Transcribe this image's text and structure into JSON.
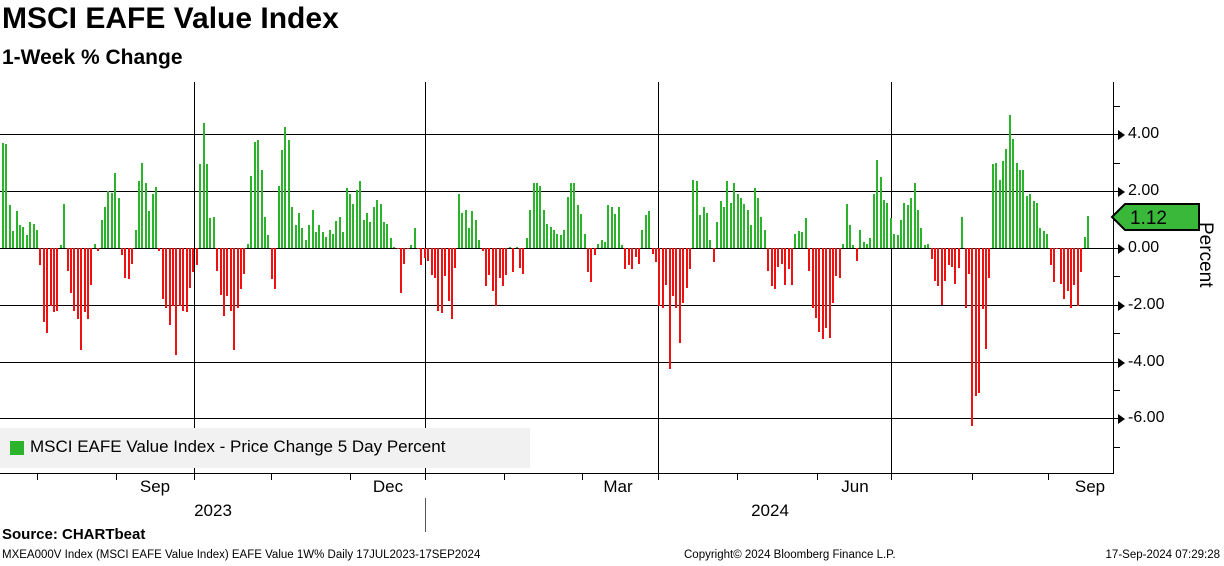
{
  "header": {
    "title": "MSCI EAFE Value Index",
    "subtitle": "1-Week % Change"
  },
  "chart_data": {
    "type": "bar",
    "title": "MSCI EAFE Value Index 1-Week % Change",
    "series_name": "MSCI EAFE Value Index - Price Change 5 Day Percent",
    "frequency": "Daily",
    "date_range": "17JUL2023-17SEP2024",
    "ylabel": "Percent",
    "ylim": [
      -7.9,
      5.85
    ],
    "y_tick_values": [
      4,
      2,
      0,
      -2,
      -4,
      -6
    ],
    "y_tick_labels": [
      "4.00",
      "2.00",
      "0.00",
      "-2.00",
      "-4.00",
      "-6.00"
    ],
    "y_minor_tick_values": [
      5,
      3,
      1,
      -1,
      -3,
      -5,
      -7
    ],
    "x_tick_labels": [
      "Sep",
      "Dec",
      "Mar",
      "Jun",
      "Sep"
    ],
    "year_labels": [
      "2023",
      "2024"
    ],
    "grid": true,
    "legend_position": "bottom-left",
    "last_value": 1.12,
    "last_value_label": "1.12",
    "colors": {
      "positive": "#2cb32c",
      "negative": "#ee1111",
      "tag_fill": "#3ab83a"
    },
    "values": [
      3.7,
      3.65,
      1.5,
      0.6,
      1.3,
      0.8,
      0.75,
      0.45,
      0.9,
      0.85,
      0.65,
      -0.6,
      -2.6,
      -3.0,
      -2.05,
      -2.25,
      -2.2,
      0.1,
      1.55,
      -0.8,
      -1.6,
      -2.2,
      -2.5,
      -3.6,
      -2.25,
      -2.5,
      -1.3,
      0.15,
      -0.1,
      1.0,
      1.45,
      2.0,
      1.95,
      2.65,
      1.75,
      -0.25,
      -1.05,
      -1.1,
      -0.55,
      0.65,
      2.35,
      3.0,
      2.3,
      1.3,
      1.9,
      2.15,
      -0.1,
      -1.8,
      -2.1,
      -2.7,
      -2.05,
      -3.75,
      -2.05,
      -2.2,
      -2.25,
      -1.4,
      -0.85,
      -0.6,
      2.95,
      4.4,
      2.95,
      1.05,
      1.1,
      -0.8,
      -1.65,
      -2.4,
      -1.7,
      -2.2,
      -3.6,
      -2.1,
      -1.45,
      -0.9,
      0.15,
      2.55,
      3.75,
      3.8,
      2.75,
      1.1,
      0.45,
      -1.1,
      -1.45,
      2.2,
      3.45,
      4.25,
      3.8,
      1.45,
      0.8,
      1.25,
      0.7,
      0.3,
      0.8,
      1.35,
      0.55,
      0.8,
      0.55,
      0.4,
      0.65,
      0.5,
      0.95,
      1.1,
      0.55,
      2.1,
      1.9,
      1.55,
      2.05,
      2.35,
      1.0,
      1.25,
      0.9,
      1.45,
      1.7,
      1.55,
      0.9,
      0.85,
      0.35,
      0.05,
      -0.05,
      -1.6,
      -0.55,
      -0.05,
      0.1,
      0.7,
      -0.05,
      -0.6,
      -0.35,
      -0.45,
      -0.95,
      -1.05,
      -2.2,
      -2.3,
      -1.0,
      -1.85,
      -2.5,
      -0.7,
      1.9,
      1.25,
      1.35,
      0.7,
      1.3,
      1.0,
      0.3,
      -0.1,
      -1.35,
      -0.95,
      -1.5,
      -2.05,
      -1.05,
      -1.35,
      -0.95,
      0.05,
      -0.85,
      0.05,
      -0.7,
      -0.9,
      0.35,
      1.35,
      2.3,
      2.3,
      2.2,
      1.35,
      0.85,
      0.75,
      0.65,
      0.5,
      0.45,
      0.65,
      1.8,
      2.3,
      2.3,
      1.5,
      1.2,
      0.5,
      -0.85,
      -1.2,
      -0.25,
      0.15,
      0.3,
      0.2,
      1.5,
      1.45,
      1.2,
      1.45,
      0.1,
      -0.75,
      -0.6,
      -0.75,
      -0.3,
      -0.55,
      0.65,
      1.15,
      1.3,
      -0.2,
      -0.5,
      -2.05,
      -2.1,
      -1.3,
      -4.25,
      -1.7,
      -2.1,
      -3.35,
      -1.95,
      -1.4,
      -0.75,
      2.4,
      2.35,
      1.15,
      1.45,
      1.25,
      0.3,
      -0.5,
      0.9,
      1.65,
      1.45,
      2.35,
      1.6,
      2.3,
      1.9,
      1.75,
      1.55,
      1.35,
      0.8,
      2.1,
      1.75,
      1.1,
      0.65,
      -0.8,
      -1.35,
      -1.45,
      -0.65,
      -0.55,
      -1.3,
      -0.75,
      -1.3,
      0.5,
      0.6,
      0.55,
      1.05,
      -0.8,
      -2.1,
      -2.45,
      -2.95,
      -3.2,
      -2.8,
      -3.15,
      -1.95,
      -1.0,
      -1.05,
      0.15,
      1.55,
      0.8,
      0.1,
      -0.45,
      0.65,
      0.2,
      0.15,
      0.35,
      1.9,
      3.1,
      2.5,
      1.7,
      1.6,
      1.05,
      0.5,
      0.45,
      1.0,
      1.6,
      1.5,
      1.75,
      2.3,
      1.35,
      0.7,
      0.1,
      0.15,
      -0.4,
      -1.15,
      -1.35,
      -2.0,
      -1.15,
      -0.6,
      -0.65,
      -1.25,
      -0.7,
      1.1,
      -2.1,
      -0.9,
      -6.25,
      -5.2,
      -5.1,
      -2.15,
      -3.55,
      -1.05,
      2.95,
      3.0,
      2.4,
      3.05,
      3.5,
      4.7,
      3.85,
      3.0,
      2.75,
      2.75,
      1.85,
      1.9,
      1.65,
      1.6,
      0.7,
      0.6,
      0.5,
      -0.6,
      -1.2,
      -0.05,
      -1.25,
      -1.8,
      -1.5,
      -2.1,
      -1.3,
      -2.05,
      -0.85,
      0.4,
      1.12
    ]
  },
  "legend": {
    "label": "MSCI EAFE Value Index - Price Change 5 Day Percent"
  },
  "source": {
    "label": "Source: CHARTbeat"
  },
  "footer": {
    "left": "MXEA000V Index (MSCI EAFE Value Index) EAFE Value 1W%  Daily 17JUL2023-17SEP2024",
    "center": "Copyright© 2024 Bloomberg Finance L.P.",
    "right": "17-Sep-2024 07:29:28"
  }
}
